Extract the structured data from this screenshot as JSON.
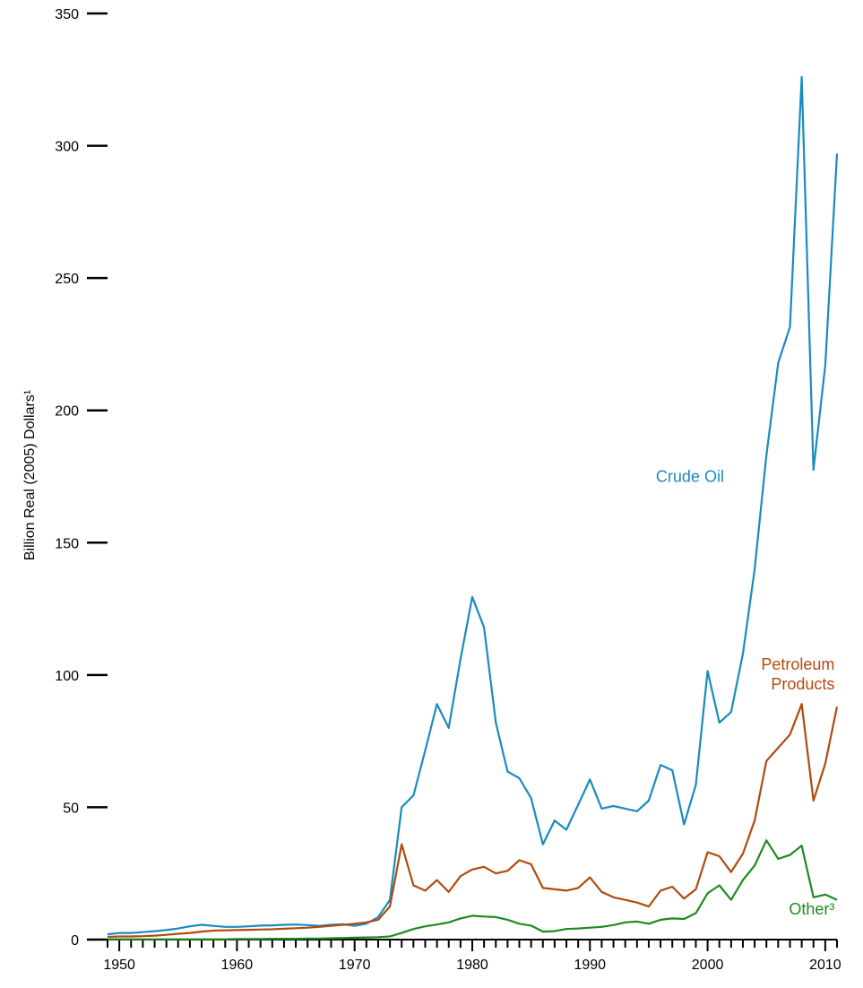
{
  "chart_data": {
    "type": "line",
    "title": "",
    "xlabel": "",
    "ylabel": "Billion Real (2005) Dollars¹",
    "xlim": [
      1949,
      2011
    ],
    "ylim": [
      0,
      350
    ],
    "y_ticks": [
      0,
      50,
      100,
      150,
      200,
      250,
      300,
      350
    ],
    "x_ticks": [
      1950,
      1960,
      1970,
      1980,
      1990,
      2000,
      2010
    ],
    "grid": false,
    "legend": "inline labels",
    "x": [
      1949,
      1950,
      1951,
      1952,
      1953,
      1954,
      1955,
      1956,
      1957,
      1958,
      1959,
      1960,
      1961,
      1962,
      1963,
      1964,
      1965,
      1966,
      1967,
      1968,
      1969,
      1970,
      1971,
      1972,
      1973,
      1974,
      1975,
      1976,
      1977,
      1978,
      1979,
      1980,
      1981,
      1982,
      1983,
      1984,
      1985,
      1986,
      1987,
      1988,
      1989,
      1990,
      1991,
      1992,
      1993,
      1994,
      1995,
      1996,
      1997,
      1998,
      1999,
      2000,
      2001,
      2002,
      2003,
      2004,
      2005,
      2006,
      2007,
      2008,
      2009,
      2010,
      2011
    ],
    "series": [
      {
        "name": "Crude Oil",
        "color": "#1a8bbf",
        "values": [
          2,
          2.5,
          2.5,
          2.8,
          3.2,
          3.6,
          4.2,
          5,
          5.6,
          5.2,
          4.8,
          4.8,
          5,
          5.3,
          5.4,
          5.6,
          5.7,
          5.5,
          5.2,
          5.6,
          5.8,
          5.2,
          6,
          8.5,
          15,
          50,
          54.5,
          71.5,
          89,
          80,
          106,
          129.5,
          118,
          82,
          63.5,
          61,
          53.5,
          36,
          45,
          41.5,
          51,
          60.5,
          49.5,
          50.5,
          49.5,
          48.5,
          52.5,
          66,
          64,
          43.5,
          58.5,
          101.5,
          82,
          86,
          108,
          140,
          183,
          218,
          231.5,
          326,
          177.5,
          217,
          297
        ]
      },
      {
        "name": "Petroleum Products",
        "color": "#b24a0c",
        "values": [
          1,
          1.2,
          1.2,
          1.3,
          1.5,
          1.8,
          2.2,
          2.5,
          3,
          3.4,
          3.5,
          3.6,
          3.7,
          3.8,
          3.9,
          4.1,
          4.3,
          4.5,
          4.8,
          5.2,
          5.6,
          6,
          6.5,
          7.5,
          12.5,
          36,
          20.5,
          18.5,
          22.5,
          18,
          24,
          26.5,
          27.5,
          25,
          26,
          30,
          28.5,
          19.5,
          19,
          18.5,
          19.5,
          23.5,
          18,
          16,
          15,
          14,
          12.5,
          18.5,
          20,
          15.5,
          19,
          33,
          31.5,
          25.5,
          32.5,
          45,
          67.5,
          72.5,
          77.5,
          89,
          52.5,
          66.5,
          88
        ]
      },
      {
        "name": "Other³",
        "color": "#1f8a1f",
        "values": [
          0.1,
          0.1,
          0.1,
          0.1,
          0.1,
          0.1,
          0.1,
          0.1,
          0.1,
          0.1,
          0.1,
          0.2,
          0.2,
          0.2,
          0.3,
          0.3,
          0.3,
          0.4,
          0.4,
          0.5,
          0.6,
          0.7,
          0.8,
          0.9,
          1.2,
          2.5,
          4,
          5,
          5.7,
          6.5,
          8,
          9,
          8.7,
          8.5,
          7.5,
          6,
          5.3,
          3,
          3.2,
          4,
          4.2,
          4.5,
          4.8,
          5.5,
          6.5,
          6.8,
          6,
          7.5,
          8,
          7.8,
          10,
          17.5,
          20.5,
          15,
          22.5,
          28,
          37.5,
          30.5,
          32,
          35.5,
          16,
          17,
          15
        ]
      }
    ],
    "series_labels": [
      {
        "lines": [
          "Crude Oil"
        ],
        "color": "#1a8bbf",
        "x_year": 2001.4,
        "y_value": 173
      },
      {
        "lines": [
          "Petroleum",
          "Products"
        ],
        "color": "#b24a0c",
        "x_year": 2010.8,
        "y_value": 102
      },
      {
        "lines": [
          "Other³"
        ],
        "color": "#1f8a1f",
        "x_year": 2010.8,
        "y_value": 9.5
      }
    ]
  }
}
